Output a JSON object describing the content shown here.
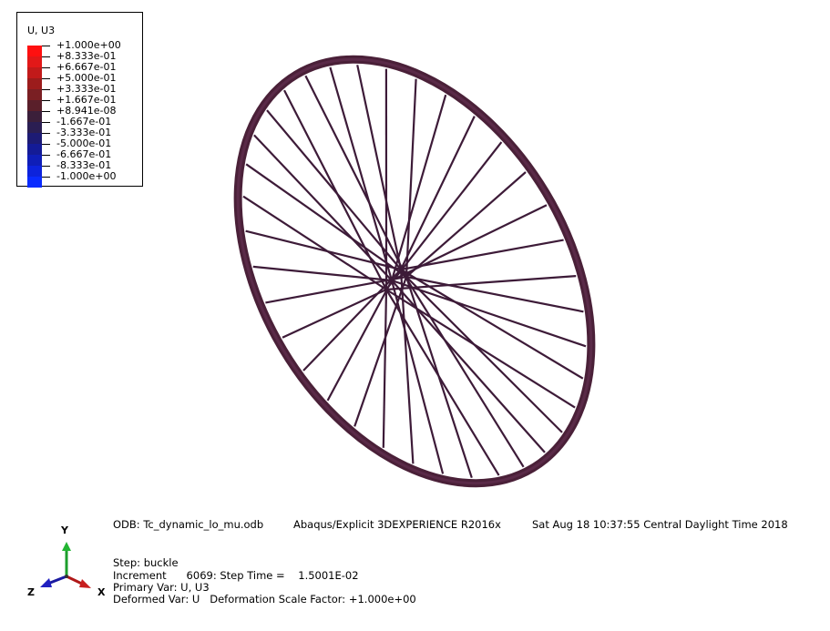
{
  "legend": {
    "title": "U, U3",
    "levels": [
      "+1.000e+00",
      "+8.333e-01",
      "+6.667e-01",
      "+5.000e-01",
      "+3.333e-01",
      "+1.667e-01",
      "+8.941e-08",
      "-1.667e-01",
      "-3.333e-01",
      "-5.000e-01",
      "-6.667e-01",
      "-8.333e-01",
      "-1.000e+00"
    ],
    "colors": [
      "#ff1010",
      "#e21818",
      "#c21a1a",
      "#9c1c1c",
      "#7a1f23",
      "#5a1f2a",
      "#3b1f3a",
      "#2b1e52",
      "#1d1b74",
      "#141b97",
      "#0f1eb8",
      "#0d23dc",
      "#0a2bff"
    ]
  },
  "model": {
    "rim_color": "#4a2038",
    "spoke_color": "#3d1b38"
  },
  "info": {
    "odb": "ODB: Tc_dynamic_lo_mu.odb",
    "solver": "Abaqus/Explicit 3DEXPERIENCE R2016x",
    "date": "Sat Aug 18 10:37:55 Central Daylight Time 2018",
    "step": "Step: buckle",
    "increment": "Increment      6069: Step Time =    1.5001E-02",
    "primary_var": "Primary Var: U, U3",
    "deformed_var": "Deformed Var: U   Deformation Scale Factor: +1.000e+00"
  },
  "triad": {
    "y": "Y",
    "z": "Z",
    "x": "X"
  }
}
